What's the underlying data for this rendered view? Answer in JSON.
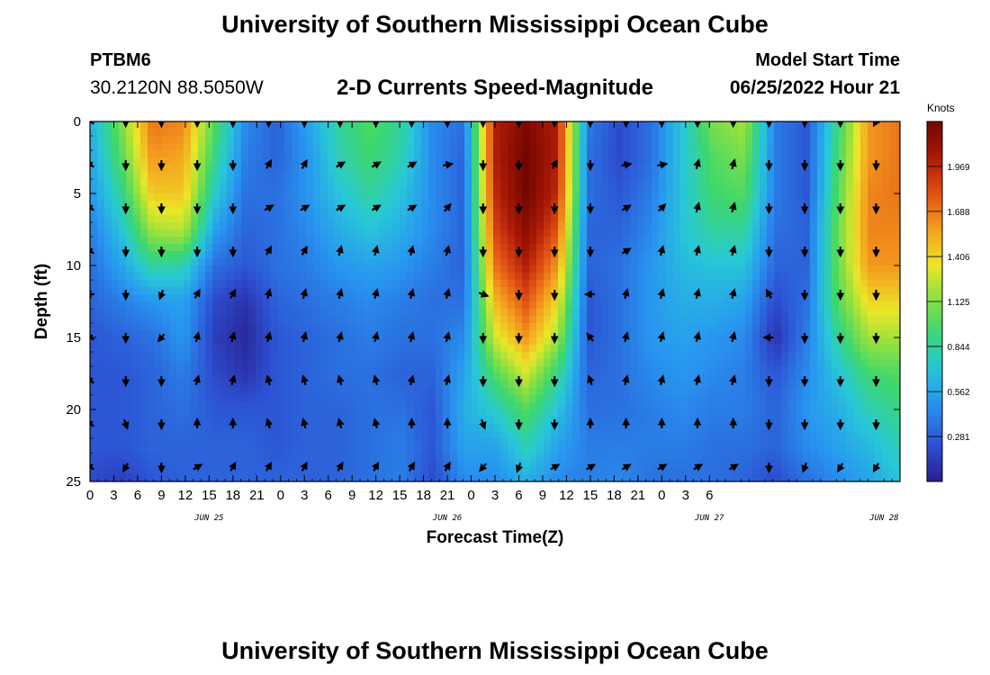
{
  "header": {
    "title": "University of Southern Mississippi Ocean Cube",
    "station": "PTBM6",
    "coords": "30.2120N  88.5050W",
    "subtitle": "2-D Currents Speed-Magnitude",
    "model_start_label": "Model Start Time",
    "model_start_value": "06/25/2022 Hour 21"
  },
  "footer": {
    "title": "University of Southern Mississippi Ocean Cube"
  },
  "colors": {
    "low": "#2b2f8f",
    "mid": "#33d07a",
    "high": "#7a0a00"
  },
  "chart_data": {
    "type": "heatmap",
    "title": "2-D Currents Speed-Magnitude",
    "xlabel": "Forecast Time(Z)",
    "ylabel": "Depth (ft)",
    "x_range_hours": [
      0,
      102
    ],
    "ylim": [
      0,
      25
    ],
    "x_tick_labels": [
      "0",
      "3",
      "6",
      "9",
      "12",
      "15",
      "18",
      "21",
      "0",
      "3",
      "6",
      "9",
      "12",
      "15",
      "18",
      "21",
      "0",
      "3",
      "6",
      "9",
      "12",
      "15",
      "18",
      "21",
      "0",
      "3",
      "6"
    ],
    "y_tick_values": [
      0,
      5,
      10,
      15,
      20,
      25
    ],
    "date_labels": [
      {
        "text": "JUN 25",
        "hour": 15
      },
      {
        "text": "JUN 26",
        "hour": 45
      },
      {
        "text": "JUN 27",
        "hour": 78
      },
      {
        "text": "JUN 28",
        "hour": 100
      }
    ],
    "colorbar": {
      "title": "Knots",
      "range": [
        0,
        2.25
      ],
      "ticks": [
        "1.969",
        "1.688",
        "1.406",
        "1.125",
        "0.844",
        "0.562",
        "0.281"
      ]
    },
    "speed_knots": [
      [
        0.6,
        1.1,
        1.7,
        1.65,
        1.0,
        0.45,
        0.3,
        0.55,
        0.85,
        1.0,
        0.85,
        0.45,
        0.35,
        2.0,
        2.2,
        2.0,
        0.4,
        0.2,
        0.35,
        0.7,
        1.1,
        1.2,
        0.4,
        0.25,
        0.9,
        1.6,
        1.7
      ],
      [
        0.55,
        1.0,
        1.6,
        1.55,
        0.9,
        0.4,
        0.3,
        0.5,
        0.8,
        0.95,
        0.8,
        0.45,
        0.3,
        2.0,
        2.25,
        2.0,
        0.35,
        0.2,
        0.35,
        0.7,
        1.0,
        1.1,
        0.4,
        0.25,
        0.95,
        1.6,
        1.7
      ],
      [
        0.5,
        0.85,
        1.45,
        1.45,
        0.75,
        0.35,
        0.35,
        0.5,
        0.7,
        0.85,
        0.7,
        0.45,
        0.3,
        1.95,
        2.25,
        1.95,
        0.35,
        0.25,
        0.4,
        0.7,
        0.95,
        1.0,
        0.4,
        0.25,
        1.0,
        1.65,
        1.7
      ],
      [
        0.4,
        0.7,
        1.2,
        1.25,
        0.55,
        0.3,
        0.35,
        0.45,
        0.6,
        0.7,
        0.6,
        0.45,
        0.3,
        1.85,
        2.15,
        1.8,
        0.3,
        0.3,
        0.45,
        0.7,
        0.85,
        0.85,
        0.35,
        0.3,
        1.05,
        1.65,
        1.65
      ],
      [
        0.35,
        0.55,
        0.85,
        0.8,
        0.35,
        0.25,
        0.35,
        0.4,
        0.5,
        0.55,
        0.5,
        0.4,
        0.3,
        1.7,
        2.0,
        1.6,
        0.3,
        0.35,
        0.5,
        0.65,
        0.7,
        0.7,
        0.3,
        0.3,
        1.05,
        1.6,
        1.6
      ],
      [
        0.3,
        0.4,
        0.5,
        0.55,
        0.2,
        0.1,
        0.3,
        0.35,
        0.4,
        0.45,
        0.4,
        0.35,
        0.35,
        1.5,
        1.8,
        1.4,
        0.25,
        0.35,
        0.5,
        0.6,
        0.6,
        0.55,
        0.2,
        0.35,
        1.0,
        1.4,
        1.4
      ],
      [
        0.25,
        0.3,
        0.35,
        0.5,
        0.15,
        0.05,
        0.25,
        0.3,
        0.35,
        0.4,
        0.35,
        0.35,
        0.45,
        1.3,
        1.6,
        1.2,
        0.25,
        0.35,
        0.5,
        0.55,
        0.5,
        0.45,
        0.1,
        0.4,
        0.85,
        1.2,
        1.2
      ],
      [
        0.25,
        0.25,
        0.3,
        0.4,
        0.2,
        0.1,
        0.25,
        0.3,
        0.35,
        0.35,
        0.3,
        0.3,
        0.55,
        1.0,
        1.3,
        0.9,
        0.3,
        0.35,
        0.45,
        0.5,
        0.45,
        0.4,
        0.25,
        0.45,
        0.7,
        0.95,
        1.0
      ],
      [
        0.25,
        0.25,
        0.3,
        0.35,
        0.25,
        0.25,
        0.25,
        0.3,
        0.3,
        0.35,
        0.35,
        0.25,
        0.6,
        0.75,
        1.0,
        0.7,
        0.35,
        0.35,
        0.4,
        0.45,
        0.4,
        0.4,
        0.3,
        0.5,
        0.6,
        0.8,
        0.9
      ],
      [
        0.25,
        0.25,
        0.3,
        0.3,
        0.3,
        0.3,
        0.25,
        0.3,
        0.3,
        0.35,
        0.4,
        0.25,
        0.55,
        0.55,
        0.8,
        0.55,
        0.4,
        0.4,
        0.4,
        0.4,
        0.35,
        0.35,
        0.3,
        0.45,
        0.55,
        0.65,
        0.8
      ],
      [
        0.2,
        0.15,
        0.25,
        0.3,
        0.3,
        0.3,
        0.3,
        0.3,
        0.3,
        0.35,
        0.4,
        0.2,
        0.45,
        0.45,
        0.6,
        0.45,
        0.4,
        0.45,
        0.35,
        0.35,
        0.35,
        0.3,
        0.2,
        0.35,
        0.45,
        0.55,
        0.7
      ]
    ],
    "arrow_rows_depth_ft": [
      0,
      3,
      6,
      9,
      12,
      15,
      18,
      21,
      24
    ],
    "arrow_columns_hour": [
      0,
      4.5,
      9,
      13.5,
      18,
      22.5,
      27,
      31.5,
      36,
      40.5,
      45,
      49.5,
      54,
      58.5,
      63,
      67.5,
      72,
      76.5,
      81,
      85.5,
      90,
      94.5,
      99
    ],
    "arrow_angles_deg": [
      [
        300,
        180,
        180,
        180,
        180,
        180,
        180,
        180,
        180,
        180,
        180,
        180,
        180,
        180,
        180,
        180,
        180,
        180,
        180,
        180,
        180,
        180,
        210
      ],
      [
        300,
        180,
        180,
        180,
        180,
        30,
        30,
        60,
        60,
        60,
        80,
        180,
        180,
        30,
        180,
        80,
        80,
        15,
        15,
        180,
        180,
        180,
        180
      ],
      [
        300,
        180,
        180,
        180,
        180,
        60,
        60,
        60,
        60,
        60,
        40,
        180,
        180,
        180,
        180,
        60,
        45,
        15,
        15,
        180,
        180,
        180,
        180
      ],
      [
        300,
        180,
        180,
        180,
        180,
        30,
        30,
        15,
        15,
        15,
        15,
        180,
        180,
        180,
        180,
        60,
        15,
        15,
        15,
        180,
        180,
        180,
        180
      ],
      [
        270,
        180,
        200,
        30,
        30,
        15,
        15,
        15,
        15,
        15,
        15,
        110,
        180,
        180,
        270,
        15,
        15,
        15,
        15,
        330,
        180,
        180,
        180
      ],
      [
        300,
        180,
        220,
        15,
        15,
        15,
        15,
        15,
        15,
        15,
        15,
        180,
        180,
        180,
        320,
        15,
        15,
        15,
        15,
        270,
        180,
        180,
        180
      ],
      [
        300,
        180,
        180,
        15,
        15,
        345,
        345,
        345,
        345,
        15,
        15,
        180,
        180,
        180,
        340,
        15,
        15,
        15,
        15,
        180,
        180,
        180,
        180
      ],
      [
        300,
        160,
        180,
        0,
        0,
        345,
        345,
        345,
        345,
        0,
        0,
        160,
        180,
        180,
        0,
        0,
        0,
        0,
        0,
        180,
        180,
        180,
        180
      ],
      [
        300,
        210,
        180,
        60,
        30,
        30,
        30,
        30,
        30,
        30,
        30,
        220,
        200,
        60,
        60,
        60,
        60,
        60,
        60,
        180,
        200,
        210,
        210
      ]
    ]
  }
}
